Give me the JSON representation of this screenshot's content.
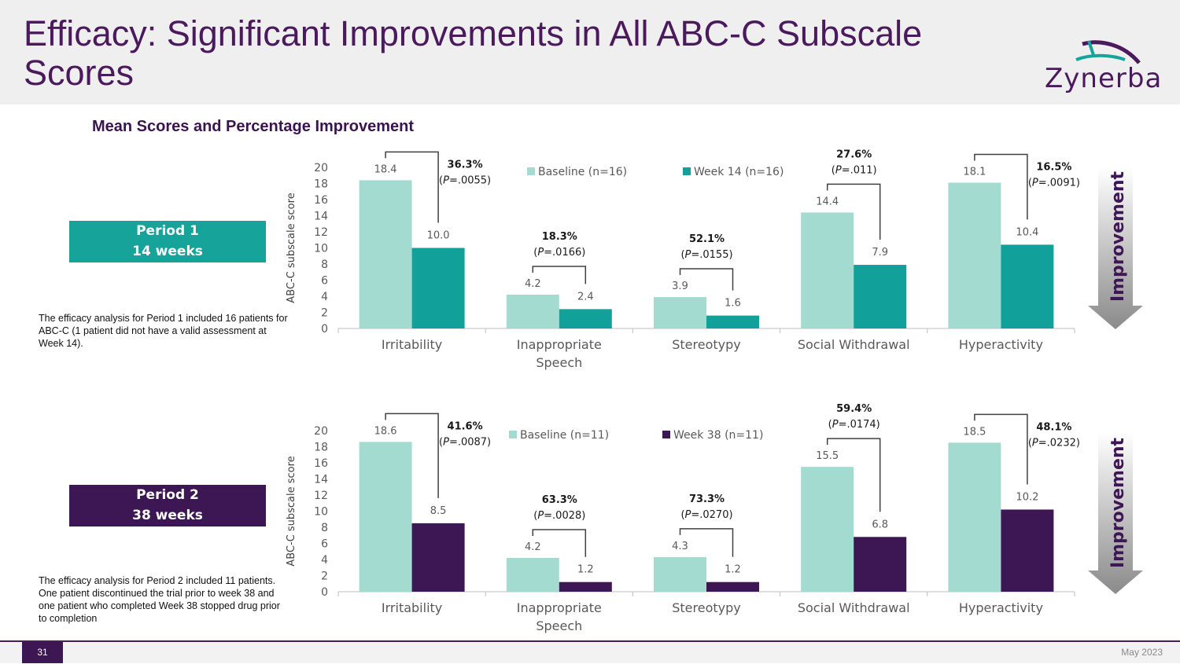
{
  "title": "Efficacy: Significant Improvements in All ABC-C Subscale Scores",
  "logo_text": "Zynerba",
  "subtitle": "Mean Scores and Percentage Improvement",
  "period1": {
    "line1": "Period 1",
    "line2": "14 weeks",
    "note": "The efficacy analysis for Period 1 included 16 patients for ABC-C (1 patient did not have a valid assessment at Week 14)."
  },
  "period2": {
    "line1": "Period 2",
    "line2": "38 weeks",
    "note": "The efficacy analysis for Period 2 included 11 patients. One patient discontinued the trial prior to week 38 and one patient who completed Week 38 stopped drug prior to completion"
  },
  "arrow_label": "Improvement",
  "footer": {
    "page": "31",
    "date": "May 2023"
  },
  "colors": {
    "baseline": "#a3dbd0",
    "week14": "#12a19a",
    "week38": "#3d1753",
    "title": "#4b1a5c"
  },
  "chart_data": [
    {
      "type": "bar",
      "ylabel": "ABC-C subscale score",
      "ylim": [
        0,
        20
      ],
      "yticks": [
        0,
        2,
        4,
        6,
        8,
        10,
        12,
        14,
        16,
        18,
        20
      ],
      "categories": [
        [
          "Irritability"
        ],
        [
          "Inappropriate",
          "Speech"
        ],
        [
          "Stereotypy"
        ],
        [
          "Social Withdrawal"
        ],
        [
          "Hyperactivity"
        ]
      ],
      "series": [
        {
          "name": "Baseline (n=16)",
          "values": [
            18.4,
            4.2,
            3.9,
            14.4,
            18.1
          ],
          "labels": [
            "18.4",
            "4.2",
            "3.9",
            "14.4",
            "18.1"
          ]
        },
        {
          "name": "Week 14 (n=16)",
          "values": [
            10.0,
            2.4,
            1.6,
            7.9,
            10.4
          ],
          "labels": [
            "10.0",
            "2.4",
            "1.6",
            "7.9",
            "10.4"
          ]
        }
      ],
      "annotations": [
        {
          "pct": "36.3%",
          "p": ".0055"
        },
        {
          "pct": "18.3%",
          "p": ".0166"
        },
        {
          "pct": "52.1%",
          "p": ".0155"
        },
        {
          "pct": "27.6%",
          "p": ".011"
        },
        {
          "pct": "16.5%",
          "p": ".0091"
        }
      ]
    },
    {
      "type": "bar",
      "ylabel": "ABC-C subscale score",
      "ylim": [
        0,
        20
      ],
      "yticks": [
        0,
        2,
        4,
        6,
        8,
        10,
        12,
        14,
        16,
        18,
        20
      ],
      "categories": [
        [
          "Irritability"
        ],
        [
          "Inappropriate",
          "Speech"
        ],
        [
          "Stereotypy"
        ],
        [
          "Social Withdrawal"
        ],
        [
          "Hyperactivity"
        ]
      ],
      "series": [
        {
          "name": "Baseline (n=11)",
          "values": [
            18.6,
            4.2,
            4.3,
            15.5,
            18.5
          ],
          "labels": [
            "18.6",
            "4.2",
            "4.3",
            "15.5",
            "18.5"
          ]
        },
        {
          "name": "Week 38 (n=11)",
          "values": [
            8.5,
            1.2,
            1.2,
            6.8,
            10.2
          ],
          "labels": [
            "8.5",
            "1.2",
            "1.2",
            "6.8",
            "10.2"
          ]
        }
      ],
      "annotations": [
        {
          "pct": "41.6%",
          "p": ".0087"
        },
        {
          "pct": "63.3%",
          "p": ".0028"
        },
        {
          "pct": "73.3%",
          "p": ".0270"
        },
        {
          "pct": "59.4%",
          "p": ".0174"
        },
        {
          "pct": "48.1%",
          "p": ".0232"
        }
      ]
    }
  ]
}
